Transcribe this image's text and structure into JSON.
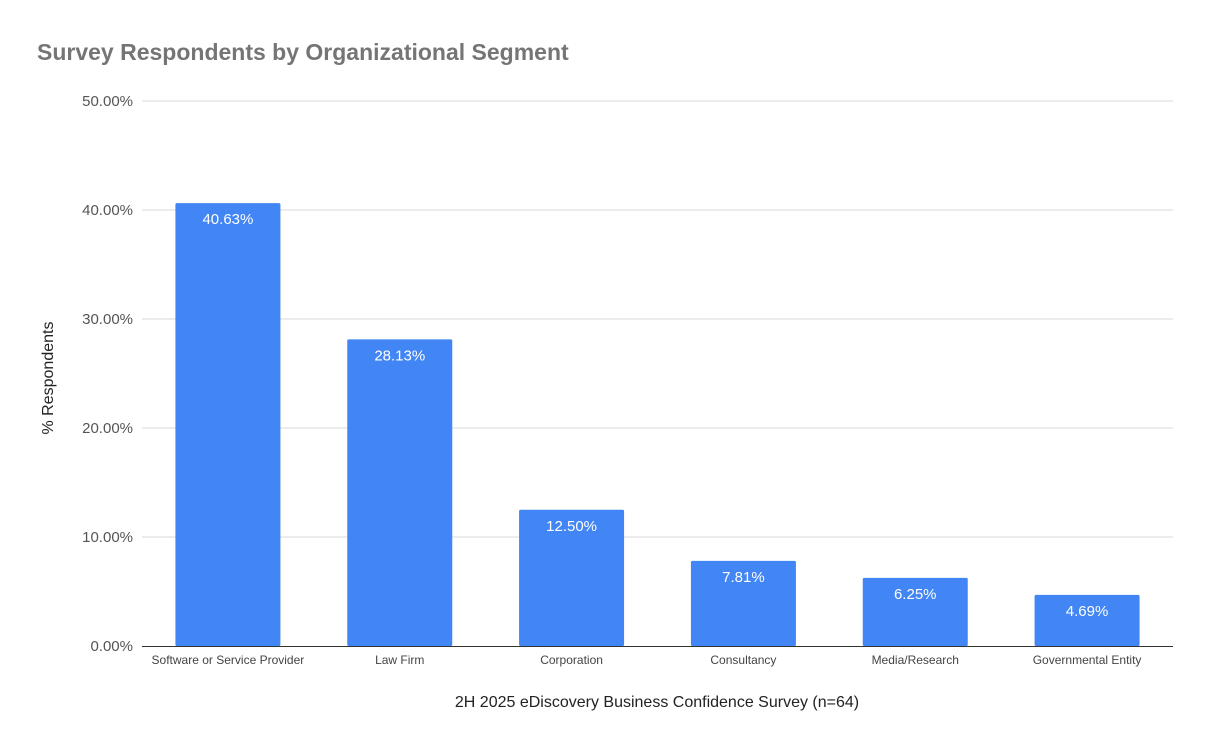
{
  "chart_data": {
    "type": "bar",
    "title": "Survey Respondents by Organizational Segment",
    "xlabel": "2H 2025 eDiscovery Business Confidence Survey (n=64)",
    "ylabel": "% Respondents",
    "categories": [
      "Software or Service Provider",
      "Law Firm",
      "Corporation",
      "Consultancy",
      "Media/Research",
      "Governmental Entity"
    ],
    "values": [
      40.63,
      28.13,
      12.5,
      7.81,
      6.25,
      4.69
    ],
    "data_labels": [
      "40.63%",
      "28.13%",
      "12.50%",
      "7.81%",
      "6.25%",
      "4.69%"
    ],
    "ylim": [
      0,
      50
    ],
    "yticks": [
      0,
      10,
      20,
      30,
      40,
      50
    ],
    "ytick_labels": [
      "0.00%",
      "10.00%",
      "20.00%",
      "30.00%",
      "40.00%",
      "50.00%"
    ],
    "grid": true,
    "legend": "none",
    "bar_color": "#4285f4"
  }
}
